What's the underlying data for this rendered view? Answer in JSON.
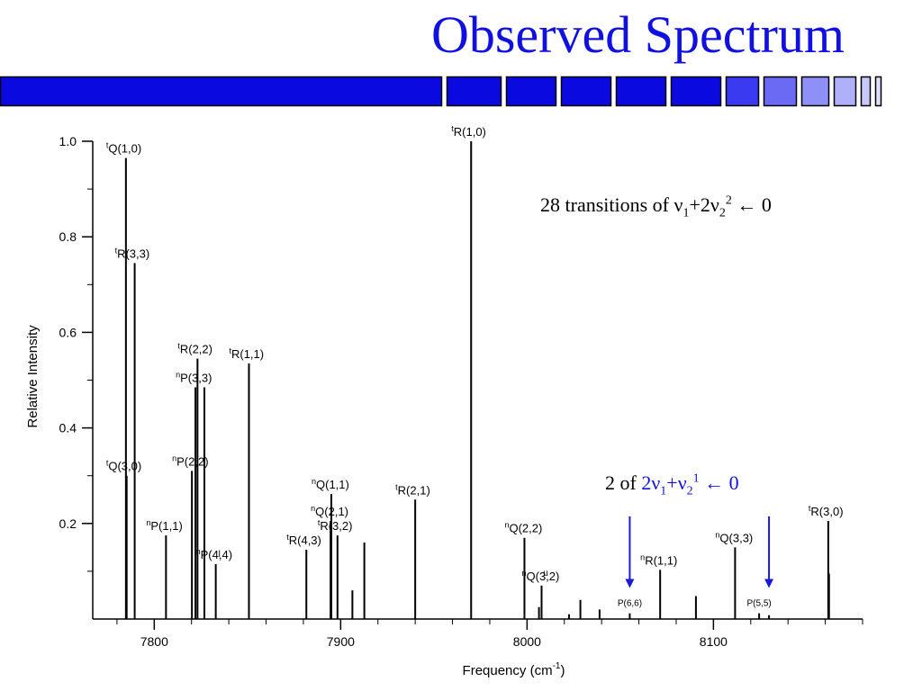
{
  "slide": {
    "title": "Observed Spectrum",
    "accent_color": "#0a0ae0",
    "banner_segments": [
      "#0a0ae0",
      "#0a0ae0",
      "#0a0ae0",
      "#0a0ae0",
      "#0a0ae0",
      "#0a0ae0",
      "#3a3af0",
      "#6a6af5",
      "#8f8ff8",
      "#b0b0fa",
      "#c8c8fc",
      "#e0e0fe"
    ]
  },
  "annotations": {
    "note1": {
      "prefix": "28 transitions of ",
      "sym": "ν",
      "sub1": "1",
      "plus": "+2",
      "sym2": "ν",
      "sub2": "2",
      "sup2": "2",
      "arrow": " ← 0"
    },
    "note2": {
      "prefix": "2 of ",
      "coef": "2",
      "sym": "ν",
      "sub1": "1",
      "plus": "+",
      "sym2": "ν",
      "sub2": "2",
      "sup2": "1",
      "arrow": " ← 0"
    }
  },
  "chart_data": {
    "type": "stick",
    "xlabel_main": "Frequency (cm",
    "xlabel_sup": "-1",
    "xlabel_end": ")",
    "ylabel": "Relative Intensity",
    "xlim": [
      7767,
      8180
    ],
    "ylim": [
      0,
      1.0
    ],
    "x_ticks": [
      7800,
      7900,
      8000,
      8100
    ],
    "y_ticks": [
      {
        "v": 0.2,
        "t": "0.2"
      },
      {
        "v": 0.4,
        "t": "0.4"
      },
      {
        "v": 0.6,
        "t": "0.6"
      },
      {
        "v": 0.8,
        "t": "0.8"
      },
      {
        "v": 1.0,
        "t": "1.0"
      }
    ],
    "lines": [
      {
        "x": 7784.8,
        "y": 0.965
      },
      {
        "x": 7785.2,
        "y": 0.3
      },
      {
        "x": 7789.5,
        "y": 0.745
      },
      {
        "x": 7806.3,
        "y": 0.175
      },
      {
        "x": 7820.2,
        "y": 0.31
      },
      {
        "x": 7822.1,
        "y": 0.485
      },
      {
        "x": 7823.2,
        "y": 0.545
      },
      {
        "x": 7826.9,
        "y": 0.485
      },
      {
        "x": 7833.0,
        "y": 0.115
      },
      {
        "x": 7850.8,
        "y": 0.535
      },
      {
        "x": 7881.6,
        "y": 0.145
      },
      {
        "x": 7894.6,
        "y": 0.205
      },
      {
        "x": 7895.0,
        "y": 0.262
      },
      {
        "x": 7898.3,
        "y": 0.175
      },
      {
        "x": 7906.3,
        "y": 0.06
      },
      {
        "x": 7912.7,
        "y": 0.16
      },
      {
        "x": 7940.0,
        "y": 0.25
      },
      {
        "x": 7970.0,
        "y": 1.0
      },
      {
        "x": 7998.6,
        "y": 0.17
      },
      {
        "x": 8006.4,
        "y": 0.025
      },
      {
        "x": 8007.8,
        "y": 0.07
      },
      {
        "x": 8022.5,
        "y": 0.01
      },
      {
        "x": 8028.6,
        "y": 0.04
      },
      {
        "x": 8038.9,
        "y": 0.02
      },
      {
        "x": 8055.1,
        "y": 0.012
      },
      {
        "x": 8071.4,
        "y": 0.103
      },
      {
        "x": 8090.6,
        "y": 0.048
      },
      {
        "x": 8111.6,
        "y": 0.15
      },
      {
        "x": 8124.5,
        "y": 0.012
      },
      {
        "x": 8129.8,
        "y": 0.008
      },
      {
        "x": 8161.6,
        "y": 0.205
      },
      {
        "x": 8162.0,
        "y": 0.095
      }
    ],
    "labels": [
      {
        "pre": "t",
        "main": "Q(1,0)",
        "x": 7784.8,
        "y": 0.965
      },
      {
        "pre": "t",
        "main": "R(3,3)",
        "x": 7789.5,
        "y": 0.745
      },
      {
        "pre": "t",
        "main": "R(2,2)",
        "x": 7823.2,
        "y": 0.545
      },
      {
        "pre": "t",
        "main": "R(1,1)",
        "x": 7850.8,
        "y": 0.535
      },
      {
        "pre": "n",
        "main": "P(3,3)",
        "x": 7822.1,
        "y": 0.485
      },
      {
        "pre": "n",
        "main": "P(2,2)",
        "x": 7820.2,
        "y": 0.31
      },
      {
        "pre": "t",
        "main": "Q(3,0)",
        "x": 7784.8,
        "y": 0.3
      },
      {
        "pre": "n",
        "main": "P(1,1)",
        "x": 7806.3,
        "y": 0.175
      },
      {
        "pre": "n",
        "main": "P(4,4)",
        "x": 7833.0,
        "y": 0.115
      },
      {
        "pre": "t",
        "main": "R(1,0)",
        "x": 7970.0,
        "y": 1.0
      },
      {
        "pre": "n",
        "main": "Q(1,1)",
        "x": 7895.0,
        "y": 0.262
      },
      {
        "pre": "n",
        "main": "Q(2,1)",
        "x": 7894.6,
        "y": 0.205
      },
      {
        "pre": "t",
        "main": "R(3,2)",
        "x": 7898.3,
        "y": 0.175
      },
      {
        "pre": "t",
        "main": "R(4,3)",
        "x": 7881.6,
        "y": 0.145
      },
      {
        "pre": "t",
        "main": "R(2,1)",
        "x": 7940.0,
        "y": 0.25
      },
      {
        "pre": "n",
        "main": "Q(2,2)",
        "x": 7998.6,
        "y": 0.17
      },
      {
        "pre": "n",
        "main": "Q(3,2)",
        "x": 8007.8,
        "y": 0.07
      },
      {
        "pre": "n",
        "main": "R(1,1)",
        "x": 8071.4,
        "y": 0.103
      },
      {
        "pre": "n",
        "main": "Q(3,3)",
        "x": 8111.6,
        "y": 0.15
      },
      {
        "pre": "t",
        "main": "R(3,0)",
        "x": 8161.6,
        "y": 0.205
      },
      {
        "pre": "",
        "main": "P(6,6)",
        "x": 8055.1,
        "y": 0.012,
        "small": true
      },
      {
        "pre": "",
        "main": "P(5,5)",
        "x": 8124.5,
        "y": 0.012,
        "small": true
      },
      {
        "pre": "",
        "main": "l",
        "x": 7835.0,
        "y": 0.115,
        "small": true
      },
      {
        "pre": "",
        "main": "u",
        "x": 8010.0,
        "y": 0.075,
        "small": true
      }
    ],
    "arrows": [
      {
        "x": 8055.1,
        "y_top": 0.215,
        "y_bottom": 0.065
      },
      {
        "x": 8129.8,
        "y_top": 0.215,
        "y_bottom": 0.065
      }
    ],
    "arrow_color": "#1a1ad8"
  }
}
